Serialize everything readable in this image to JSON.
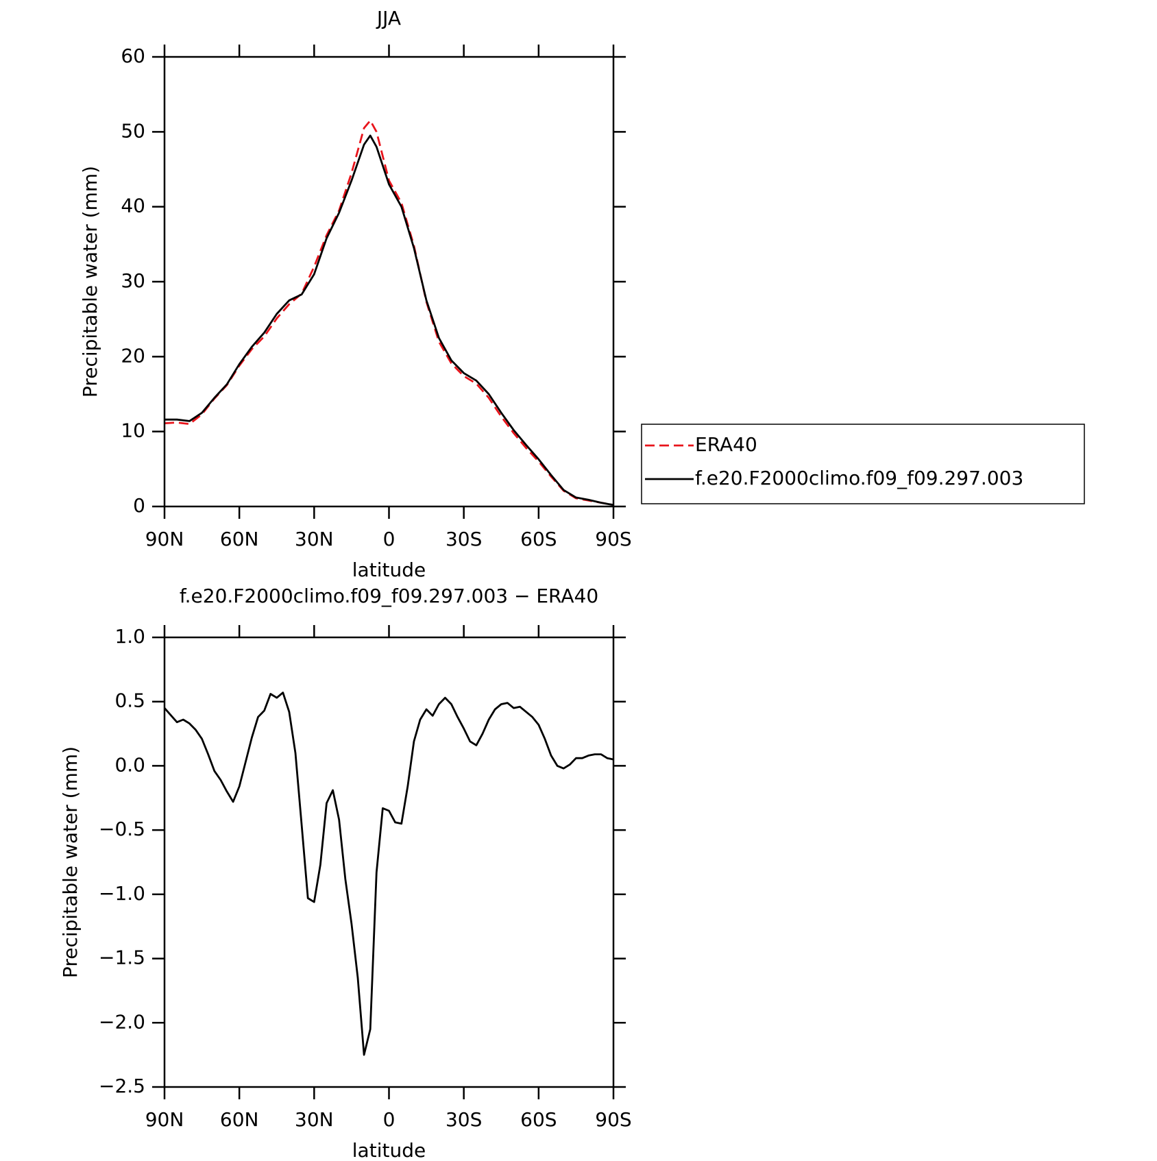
{
  "chart_data": [
    {
      "type": "line",
      "title": "JJA",
      "xlabel": "latitude",
      "ylabel": "Precipitable water (mm)",
      "x": [
        90,
        85,
        80,
        75,
        70,
        65,
        60,
        55,
        50,
        45,
        40,
        35,
        30,
        25,
        20,
        15,
        10,
        7.5,
        5,
        0,
        -5,
        -10,
        -15,
        -20,
        -25,
        -30,
        -35,
        -40,
        -45,
        -50,
        -55,
        -60,
        -65,
        -70,
        -75,
        -80,
        -85,
        -90
      ],
      "series": [
        {
          "name": "ERA40",
          "color": "#e8141b",
          "line_style": "dashed",
          "values": [
            11.1,
            11.2,
            11.0,
            12.3,
            14.4,
            16.2,
            18.8,
            21.0,
            22.7,
            25.1,
            27.0,
            28.4,
            32.0,
            36.2,
            39.5,
            44.5,
            50.5,
            51.5,
            50.0,
            43.5,
            40.5,
            34.8,
            27.3,
            22.0,
            19.1,
            17.4,
            16.4,
            14.5,
            12.0,
            9.8,
            7.8,
            6.0,
            4.0,
            2.1,
            1.1,
            0.8,
            0.5,
            0.2
          ]
        },
        {
          "name": "f.e20.F2000climo.f09_f09.297.003",
          "color": "#000000",
          "line_style": "solid",
          "values": [
            11.6,
            11.6,
            11.4,
            12.5,
            14.5,
            16.3,
            19.0,
            21.3,
            23.2,
            25.7,
            27.5,
            28.3,
            31.0,
            35.8,
            39.2,
            43.5,
            48.3,
            49.5,
            48.0,
            43.0,
            40.0,
            34.5,
            27.5,
            22.5,
            19.5,
            17.8,
            16.8,
            15.0,
            12.5,
            10.2,
            8.2,
            6.3,
            4.2,
            2.2,
            1.2,
            0.9,
            0.5,
            0.2
          ]
        }
      ],
      "xlim": [
        90,
        -90
      ],
      "xticks": [
        {
          "value": 90,
          "label": "90N"
        },
        {
          "value": 60,
          "label": "60N"
        },
        {
          "value": 30,
          "label": "30N"
        },
        0,
        {
          "value": -30,
          "label": "30S"
        },
        {
          "value": -60,
          "label": "60S"
        },
        {
          "value": -90,
          "label": "90S"
        }
      ],
      "ylim": [
        0,
        60
      ],
      "yticks": [
        0,
        10,
        20,
        30,
        40,
        50,
        60
      ],
      "legend": "right"
    },
    {
      "type": "line",
      "title": "f.e20.F2000climo.f09_f09.297.003 − ERA40",
      "xlabel": "latitude",
      "ylabel": "Precipitable water (mm)",
      "x": [
        90,
        85,
        82.5,
        80,
        77.5,
        75,
        72.5,
        70,
        67.5,
        65,
        62.5,
        60,
        57.5,
        55,
        52.5,
        50,
        47.5,
        45,
        42.5,
        40,
        37.5,
        35,
        32.5,
        30,
        27.5,
        25,
        22.5,
        20,
        17.5,
        15,
        12.5,
        10,
        7.5,
        5,
        2.5,
        0,
        -2.5,
        -5,
        -7.5,
        -10,
        -12.5,
        -15,
        -17.5,
        -20,
        -22.5,
        -25,
        -27.5,
        -30,
        -32.5,
        -35,
        -37.5,
        -40,
        -42.5,
        -45,
        -47.5,
        -50,
        -52.5,
        -55,
        -57.5,
        -60,
        -62.5,
        -65,
        -67.5,
        -70,
        -72.5,
        -75,
        -77.5,
        -80,
        -82.5,
        -85,
        -87.5,
        -90
      ],
      "series": [
        {
          "color": "#000000",
          "line_style": "solid",
          "values": [
            0.45,
            0.34,
            0.36,
            0.33,
            0.28,
            0.21,
            0.09,
            -0.04,
            -0.11,
            -0.2,
            -0.28,
            -0.16,
            0.03,
            0.22,
            0.38,
            0.43,
            0.56,
            0.53,
            0.57,
            0.42,
            0.1,
            -0.46,
            -1.03,
            -1.06,
            -0.77,
            -0.29,
            -0.19,
            -0.42,
            -0.88,
            -1.23,
            -1.65,
            -2.25,
            -2.05,
            -0.83,
            -0.33,
            -0.35,
            -0.44,
            -0.45,
            -0.16,
            0.19,
            0.36,
            0.44,
            0.39,
            0.48,
            0.53,
            0.48,
            0.38,
            0.29,
            0.19,
            0.16,
            0.25,
            0.36,
            0.44,
            0.48,
            0.49,
            0.45,
            0.46,
            0.42,
            0.38,
            0.32,
            0.21,
            0.08,
            0.0,
            -0.02,
            0.01,
            0.06,
            0.06,
            0.08,
            0.09,
            0.09,
            0.06,
            0.05
          ]
        }
      ],
      "xlim": [
        90,
        -90
      ],
      "xticks": [
        {
          "value": 90,
          "label": "90N"
        },
        {
          "value": 60,
          "label": "60N"
        },
        {
          "value": 30,
          "label": "30N"
        },
        0,
        {
          "value": -30,
          "label": "30S"
        },
        {
          "value": -60,
          "label": "60S"
        },
        {
          "value": -90,
          "label": "90S"
        }
      ],
      "ylim": [
        -2.5,
        1.0
      ],
      "yticks": [
        {
          "value": -2.5,
          "label": "−2.5"
        },
        {
          "value": -2.0,
          "label": "−2.0"
        },
        {
          "value": -1.5,
          "label": "−1.5"
        },
        {
          "value": -1.0,
          "label": "−1.0"
        },
        {
          "value": -0.5,
          "label": "−0.5"
        },
        {
          "value": 0,
          "label": "0.0"
        },
        0.5,
        {
          "value": 1.0,
          "label": "1.0"
        }
      ]
    }
  ]
}
